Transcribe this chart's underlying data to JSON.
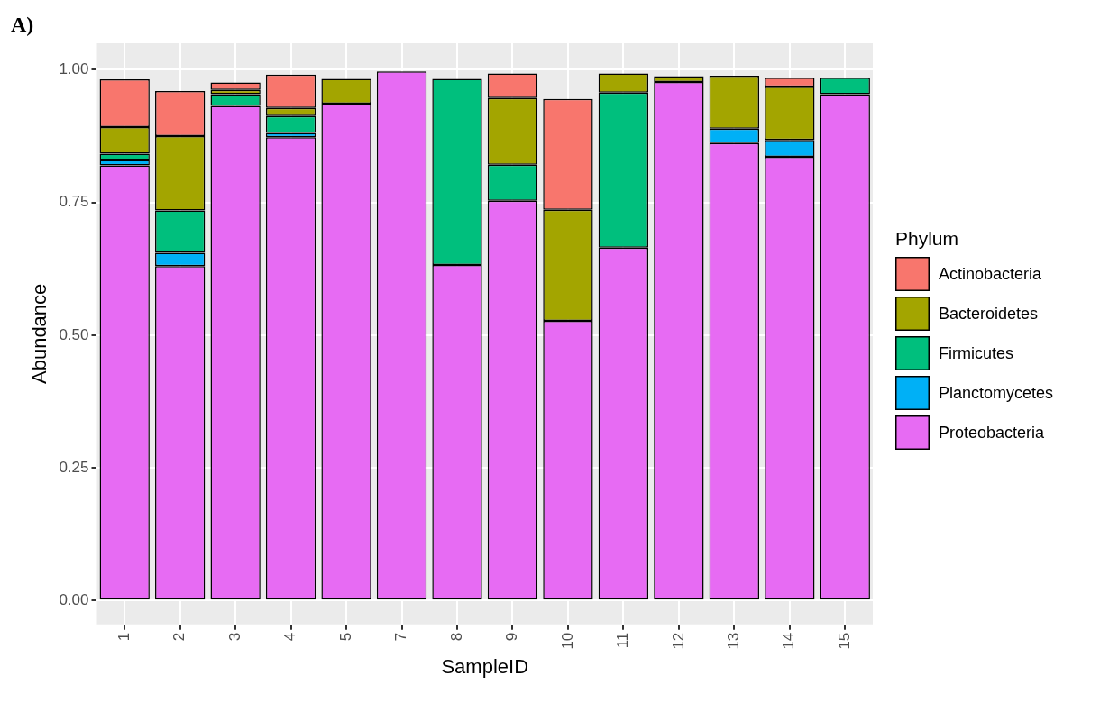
{
  "chart_data": {
    "type": "bar",
    "stacked": true,
    "xlabel": "SampleID",
    "ylabel": "Abundance",
    "legend_title": "Phylum",
    "legend": "right",
    "grid": true,
    "annotations": [
      "A)"
    ],
    "categories": [
      "1",
      "2",
      "3",
      "4",
      "5",
      "7",
      "8",
      "9",
      "10",
      "11",
      "12",
      "13",
      "14",
      "15"
    ],
    "ylim": [
      -0.045,
      1.05
    ],
    "yticks": [
      {
        "value": 0,
        "label": "0.00"
      },
      {
        "value": 0.25,
        "label": "0.25"
      },
      {
        "value": 0.5,
        "label": "0.50"
      },
      {
        "value": 0.75,
        "label": "0.75"
      },
      {
        "value": 1,
        "label": "1.00"
      }
    ],
    "series": [
      {
        "name": "Proteobacteria",
        "color": "#e76bf3",
        "values": [
          0.82,
          0.63,
          0.932,
          0.873,
          0.936,
          0.997,
          0.632,
          0.753,
          0.527,
          0.665,
          0.977,
          0.862,
          0.836,
          0.954
        ]
      },
      {
        "name": "Planctomycetes",
        "color": "#00b0f6",
        "values": [
          0.01,
          0.025,
          null,
          0.008,
          null,
          null,
          null,
          null,
          null,
          null,
          null,
          0.027,
          0.032,
          null
        ]
      },
      {
        "name": "Firmicutes",
        "color": "#00bf7d",
        "values": [
          0.012,
          0.08,
          0.022,
          0.032,
          null,
          null,
          0.351,
          0.068,
          null,
          0.292,
          null,
          null,
          null,
          0.031
        ]
      },
      {
        "name": "Bacteroidetes",
        "color": "#a3a500",
        "values": [
          0.05,
          0.14,
          0.008,
          0.015,
          0.047,
          null,
          null,
          0.126,
          0.209,
          0.036,
          0.011,
          0.1,
          0.1,
          null
        ]
      },
      {
        "name": "Actinobacteria",
        "color": "#f8766d",
        "values": [
          0.09,
          0.085,
          0.014,
          0.063,
          null,
          null,
          null,
          0.046,
          0.209,
          null,
          null,
          null,
          0.017,
          null
        ]
      }
    ]
  }
}
